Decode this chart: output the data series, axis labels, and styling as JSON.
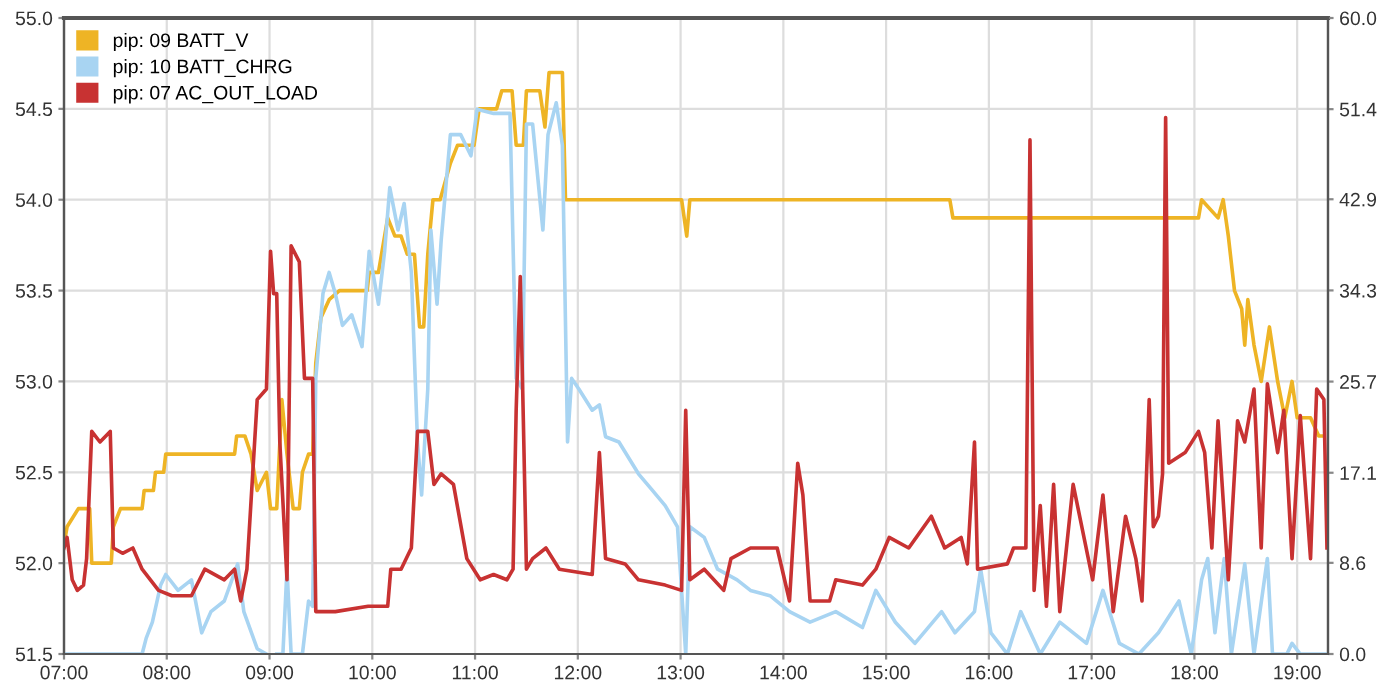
{
  "chart_data": {
    "type": "line",
    "legend": "top left",
    "grid": true,
    "marker": "none",
    "line_style": "solid",
    "xlim": [
      7,
      19.3
    ],
    "xticks": [
      {
        "value": 7,
        "label": "07:00"
      },
      {
        "value": 8,
        "label": "08:00"
      },
      {
        "value": 9,
        "label": "09:00"
      },
      {
        "value": 10,
        "label": "10:00"
      },
      {
        "value": 11,
        "label": "11:00"
      },
      {
        "value": 12,
        "label": "12:00"
      },
      {
        "value": 13,
        "label": "13:00"
      },
      {
        "value": 14,
        "label": "14:00"
      },
      {
        "value": 15,
        "label": "15:00"
      },
      {
        "value": 16,
        "label": "16:00"
      },
      {
        "value": 17,
        "label": "17:00"
      },
      {
        "value": 18,
        "label": "18:00"
      },
      {
        "value": 19,
        "label": "19:00"
      }
    ],
    "ylim": [
      51.5,
      55.0
    ],
    "yticks": [
      {
        "value": 51.5,
        "label": "51.5"
      },
      {
        "value": 52.0,
        "label": "52.0"
      },
      {
        "value": 52.5,
        "label": "52.5"
      },
      {
        "value": 53.0,
        "label": "53.0"
      },
      {
        "value": 53.5,
        "label": "53.5"
      },
      {
        "value": 54.0,
        "label": "54.0"
      },
      {
        "value": 54.5,
        "label": "54.5"
      },
      {
        "value": 55.0,
        "label": "55.0"
      }
    ],
    "y2lim": [
      0,
      60
    ],
    "y2ticks": [
      {
        "value": 0,
        "label": "0.0"
      },
      8.6,
      17.1,
      25.7,
      34.3,
      42.9,
      51.4,
      {
        "value": 60,
        "label": "60.0"
      }
    ],
    "series": [
      {
        "name": "pip: 09 BATT_V",
        "color": "#eeb425",
        "x": [
          7.0,
          7.03,
          7.14,
          7.25,
          7.27,
          7.46,
          7.48,
          7.55,
          7.76,
          7.78,
          7.87,
          7.89,
          7.97,
          7.99,
          8.66,
          8.68,
          8.76,
          8.82,
          8.88,
          8.97,
          9.01,
          9.07,
          9.12,
          9.17,
          9.23,
          9.29,
          9.32,
          9.38,
          9.42,
          9.45,
          9.5,
          9.58,
          9.68,
          9.95,
          9.97,
          10.06,
          10.15,
          10.22,
          10.28,
          10.34,
          10.41,
          10.46,
          10.5,
          10.54,
          10.59,
          10.66,
          10.76,
          10.83,
          10.99,
          11.04,
          11.21,
          11.26,
          11.36,
          11.4,
          11.47,
          11.5,
          11.63,
          11.68,
          11.72,
          11.85,
          11.88,
          12.4,
          12.97,
          13.01,
          13.06,
          13.09,
          14.9,
          15.62,
          15.65,
          17.33,
          18.04,
          18.07,
          18.23,
          18.28,
          18.33,
          18.39,
          18.46,
          18.49,
          18.52,
          18.58,
          18.65,
          18.73,
          18.81,
          18.88,
          18.95,
          19.0,
          19.13,
          19.21,
          19.26
        ],
        "values": [
          52.1,
          52.2,
          52.3,
          52.3,
          52.0,
          52.0,
          52.2,
          52.3,
          52.3,
          52.4,
          52.4,
          52.5,
          52.5,
          52.6,
          52.6,
          52.7,
          52.7,
          52.6,
          52.4,
          52.5,
          52.3,
          52.3,
          52.9,
          52.6,
          52.3,
          52.3,
          52.5,
          52.6,
          52.6,
          53.1,
          53.35,
          53.45,
          53.5,
          53.5,
          53.6,
          53.6,
          53.9,
          53.8,
          53.8,
          53.7,
          53.7,
          53.3,
          53.3,
          53.7,
          54.0,
          54.0,
          54.2,
          54.3,
          54.3,
          54.5,
          54.5,
          54.6,
          54.6,
          54.3,
          54.3,
          54.6,
          54.6,
          54.4,
          54.7,
          54.7,
          54.0,
          54.0,
          54.0,
          54.0,
          53.8,
          54.0,
          54.0,
          54.0,
          53.9,
          53.9,
          53.9,
          54.0,
          53.9,
          54.0,
          53.8,
          53.5,
          53.4,
          53.2,
          53.45,
          53.2,
          53.0,
          53.3,
          53.0,
          52.8,
          53.0,
          52.8,
          52.8,
          52.7,
          52.7
        ]
      },
      {
        "name": "pip: 10 BATT_CHRG",
        "color": "#a8d4f2",
        "axis": "y2",
        "x": [
          7.0,
          7.76,
          7.8,
          7.86,
          7.94,
          7.99,
          8.11,
          8.24,
          8.34,
          8.43,
          8.56,
          8.69,
          8.75,
          8.88,
          8.97,
          9.01,
          9.07,
          9.13,
          9.17,
          9.21,
          9.32,
          9.38,
          9.42,
          9.45,
          9.52,
          9.58,
          9.64,
          9.71,
          9.8,
          9.9,
          9.97,
          10.06,
          10.12,
          10.17,
          10.25,
          10.31,
          10.38,
          10.44,
          10.48,
          10.54,
          10.57,
          10.63,
          10.67,
          10.76,
          10.86,
          10.96,
          11.02,
          11.18,
          11.28,
          11.34,
          11.4,
          11.46,
          11.5,
          11.56,
          11.66,
          11.71,
          11.79,
          11.85,
          11.9,
          11.94,
          12.01,
          12.14,
          12.21,
          12.27,
          12.4,
          12.59,
          12.72,
          12.85,
          12.97,
          13.05,
          13.09,
          13.23,
          13.36,
          13.55,
          13.68,
          13.87,
          14.06,
          14.26,
          14.51,
          14.77,
          14.9,
          15.09,
          15.28,
          15.54,
          15.67,
          15.86,
          15.92,
          16.02,
          16.18,
          16.31,
          16.5,
          16.69,
          16.95,
          17.11,
          17.27,
          17.46,
          17.65,
          17.85,
          17.97,
          18.07,
          18.13,
          18.2,
          18.29,
          18.36,
          18.49,
          18.58,
          18.71,
          18.76,
          18.9,
          18.95,
          19.03,
          19.29
        ],
        "values": [
          0,
          0,
          1.5,
          3,
          6.5,
          7.5,
          6,
          7,
          2,
          4,
          5,
          8.5,
          4,
          0.5,
          0,
          null,
          0,
          0,
          8,
          0,
          0,
          5,
          4.5,
          26,
          34,
          36,
          34,
          31,
          32,
          29,
          38,
          33,
          38,
          44,
          40,
          42.5,
          36,
          20,
          15,
          25,
          40,
          33,
          39,
          49,
          49,
          47,
          51.4,
          51,
          51,
          51,
          26,
          25,
          50,
          50,
          40,
          49,
          52,
          48,
          20,
          26,
          25,
          23,
          23.5,
          20.5,
          20,
          17,
          15.5,
          14,
          12,
          0,
          12,
          11,
          8,
          7,
          6,
          5.5,
          4,
          3,
          4,
          2.5,
          6,
          3,
          1,
          4,
          2,
          4,
          8,
          2,
          0,
          4,
          0,
          3,
          1,
          6,
          1,
          0,
          2,
          5,
          0,
          7,
          9,
          2,
          9,
          0,
          8.5,
          0,
          9,
          0,
          0,
          1,
          0,
          0
        ]
      },
      {
        "name": "pip: 07 AC_OUT_LOAD",
        "color": "#c83232",
        "axis": "y2",
        "x": [
          7.0,
          7.03,
          7.08,
          7.13,
          7.19,
          7.22,
          7.27,
          7.35,
          7.45,
          7.48,
          7.57,
          7.67,
          7.76,
          7.92,
          8.05,
          8.24,
          8.37,
          8.56,
          8.66,
          8.72,
          8.78,
          8.88,
          8.97,
          9.01,
          9.04,
          9.07,
          9.1,
          9.17,
          9.21,
          9.29,
          9.34,
          9.42,
          9.45,
          9.64,
          9.96,
          10.15,
          10.18,
          10.28,
          10.38,
          10.44,
          10.54,
          10.6,
          10.67,
          10.79,
          10.92,
          11.05,
          11.18,
          11.31,
          11.37,
          11.4,
          11.44,
          11.47,
          11.5,
          11.56,
          11.69,
          11.82,
          12.14,
          12.21,
          12.27,
          12.46,
          12.59,
          12.85,
          13.01,
          13.05,
          13.09,
          13.23,
          13.42,
          13.49,
          13.68,
          13.94,
          14.06,
          14.14,
          14.19,
          14.26,
          14.45,
          14.51,
          14.77,
          14.9,
          15.03,
          15.22,
          15.44,
          15.57,
          15.73,
          15.79,
          15.86,
          15.89,
          16.18,
          16.24,
          16.36,
          16.4,
          16.44,
          16.5,
          16.56,
          16.63,
          16.69,
          16.82,
          17.01,
          17.11,
          17.21,
          17.33,
          17.43,
          17.49,
          17.56,
          17.6,
          17.65,
          17.69,
          17.72,
          17.75,
          17.91,
          18.04,
          18.1,
          18.17,
          18.23,
          18.33,
          18.42,
          18.49,
          18.58,
          18.65,
          18.71,
          18.81,
          18.87,
          18.95,
          19.03,
          19.13,
          19.19,
          19.26,
          19.29
        ],
        "values": [
          10,
          11,
          7,
          6,
          6.5,
          9,
          21,
          20,
          21,
          10,
          9.5,
          10,
          8,
          6,
          5.5,
          5.5,
          8,
          7,
          8,
          5,
          8,
          24,
          25,
          38,
          34,
          34,
          20,
          7,
          38.5,
          37,
          26,
          26,
          4,
          4,
          4.5,
          4.5,
          8,
          8,
          10,
          21,
          21,
          16,
          17,
          16,
          9,
          7,
          7.5,
          7,
          8,
          23,
          35.6,
          22,
          8,
          9,
          10,
          8,
          7.5,
          19,
          9,
          8.5,
          7,
          6.5,
          6,
          23,
          7,
          8,
          6,
          9,
          10,
          10,
          5,
          18,
          15,
          5,
          5,
          7,
          6.5,
          8,
          11,
          10,
          13,
          10,
          11,
          8.5,
          20,
          8,
          8.5,
          10,
          10,
          48.5,
          6,
          14,
          4.5,
          16,
          4,
          16,
          7,
          15,
          4,
          13,
          9,
          5,
          24,
          12,
          13,
          17,
          50.6,
          18,
          19,
          21,
          19,
          10,
          22,
          7,
          22,
          20,
          25,
          10,
          25.5,
          19,
          23,
          9,
          22.5,
          9,
          25,
          24,
          10
        ]
      }
    ]
  }
}
